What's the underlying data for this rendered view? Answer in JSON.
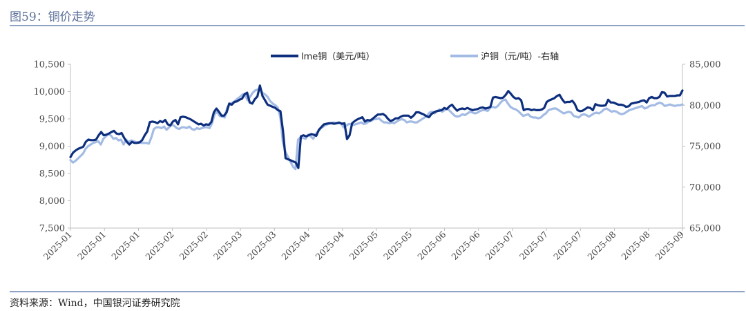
{
  "figure": {
    "title": "图59：铜价走势",
    "source": "资料来源：Wind，中国银河证券研究院"
  },
  "colors": {
    "lme": "#0e2f7e",
    "shfe": "#a3bbe4",
    "axis": "#bfbfbf"
  },
  "chart_data": {
    "type": "line",
    "title": "",
    "xlabel": "",
    "ylabel": "",
    "x_tick_labels": [
      "2025-01",
      "2025-01",
      "2025-01",
      "2025-02",
      "2025-02",
      "2025-03",
      "2025-03",
      "2025-04",
      "2025-04",
      "2025-05",
      "2025-05",
      "2025-06",
      "2025-06",
      "2025-07",
      "2025-07",
      "2025-07",
      "2025-08",
      "2025-08",
      "2025-09"
    ],
    "y_left": {
      "ylim": [
        7500,
        10500
      ],
      "ticks": [
        "7,500",
        "8,000",
        "8,500",
        "9,000",
        "9,500",
        "10,000",
        "10,500"
      ]
    },
    "y_right": {
      "ylim": [
        65000,
        85000
      ],
      "ticks": [
        "65,000",
        "70,000",
        "75,000",
        "80,000",
        "85,000"
      ]
    },
    "legend_position": "top",
    "series": [
      {
        "name": "lme铜（美元/吨）",
        "axis": "left",
        "values": [
          8800,
          8880,
          8920,
          8950,
          8970,
          8990,
          9080,
          9120,
          9110,
          9110,
          9120,
          9200,
          9260,
          9200,
          9210,
          9230,
          9260,
          9280,
          9230,
          9220,
          9240,
          9150,
          9080,
          9030,
          9080,
          9060,
          9060,
          9070,
          9110,
          9200,
          9270,
          9440,
          9450,
          9440,
          9420,
          9460,
          9440,
          9480,
          9400,
          9380,
          9450,
          9480,
          9400,
          9530,
          9540,
          9530,
          9510,
          9490,
          9460,
          9430,
          9400,
          9410,
          9380,
          9400,
          9390,
          9440,
          9620,
          9690,
          9630,
          9560,
          9560,
          9620,
          9780,
          9760,
          9810,
          9820,
          9850,
          9870,
          9950,
          9980,
          9800,
          9780,
          9860,
          9910,
          10110,
          9920,
          9840,
          9760,
          9740,
          9720,
          9700,
          9660,
          9640,
          9280,
          8780,
          8760,
          8740,
          8720,
          8700,
          8600,
          9180,
          9200,
          9180,
          9200,
          9220,
          9210,
          9190,
          9300,
          9350,
          9400,
          9410,
          9420,
          9420,
          9410,
          9420,
          9430,
          9410,
          9420,
          9130,
          9200,
          9420,
          9460,
          9490,
          9510,
          9530,
          9450,
          9480,
          9470,
          9500,
          9540,
          9580,
          9580,
          9590,
          9560,
          9500,
          9460,
          9480,
          9510,
          9510,
          9540,
          9560,
          9560,
          9560,
          9520,
          9560,
          9620,
          9620,
          9600,
          9580,
          9550,
          9530,
          9590,
          9620,
          9640,
          9650,
          9660,
          9700,
          9680,
          9730,
          9760,
          9700,
          9650,
          9680,
          9690,
          9680,
          9700,
          9680,
          9660,
          9670,
          9680,
          9700,
          9710,
          9690,
          9700,
          9720,
          9890,
          9900,
          9890,
          9880,
          9890,
          9940,
          10010,
          9960,
          9900,
          9870,
          9880,
          9840,
          9660,
          9680,
          9680,
          9660,
          9670,
          9660,
          9660,
          9670,
          9700,
          9810,
          9840,
          9860,
          9880,
          9920,
          9940,
          9860,
          9800,
          9810,
          9810,
          9830,
          9770,
          9660,
          9640,
          9650,
          9680,
          9710,
          9700,
          9660,
          9770,
          9750,
          9740,
          9740,
          9750,
          9850,
          9800,
          9800,
          9780,
          9760,
          9760,
          9750,
          9720,
          9730,
          9780,
          9790,
          9800,
          9810,
          9830,
          9840,
          9800,
          9880,
          9900,
          9880,
          9880,
          9900,
          9990,
          9980,
          9910,
          9920,
          9920,
          9920,
          9930,
          9930,
          10020
        ]
      },
      {
        "name": "沪铜（元/吨）-右轴",
        "axis": "right",
        "values": [
          73300,
          73000,
          73200,
          73500,
          73800,
          74100,
          74700,
          75000,
          75200,
          75400,
          75500,
          75600,
          75200,
          75900,
          76200,
          76500,
          76300,
          75900,
          76000,
          75700,
          75800,
          75200,
          75800,
          75500,
          75700,
          75600,
          75500,
          75500,
          75400,
          75400,
          75400,
          75300,
          76100,
          77100,
          77300,
          77300,
          77200,
          77400,
          77000,
          77300,
          77600,
          77500,
          77200,
          77100,
          77300,
          77300,
          77200,
          77400,
          77100,
          77000,
          77200,
          77100,
          77200,
          77300,
          77300,
          77200,
          77800,
          78900,
          79200,
          78700,
          78600,
          78500,
          79700,
          80200,
          80300,
          80500,
          80800,
          81000,
          81300,
          81400,
          80600,
          81000,
          81500,
          81800,
          81900,
          81900,
          81500,
          81300,
          81000,
          80500,
          80200,
          80000,
          79700,
          78500,
          75500,
          74300,
          73700,
          73100,
          72500,
          72200,
          75800,
          76100,
          76000,
          75900,
          76400,
          76200,
          75900,
          76500,
          76800,
          77200,
          77400,
          77600,
          77700,
          77800,
          77900,
          77800,
          77900,
          77800,
          77300,
          77500,
          77700,
          77700,
          77600,
          77700,
          77800,
          77900,
          77700,
          77800,
          78000,
          78100,
          78300,
          78300,
          78400,
          78100,
          77900,
          77900,
          77800,
          77900,
          77800,
          78000,
          78200,
          78300,
          78200,
          77900,
          78000,
          78000,
          77900,
          77900,
          78100,
          78300,
          78500,
          78700,
          79100,
          79200,
          79000,
          79300,
          79500,
          79200,
          79400,
          79600,
          79300,
          79000,
          78700,
          78600,
          78700,
          78900,
          78800,
          79000,
          79200,
          79100,
          79000,
          79100,
          79300,
          79400,
          79400,
          79300,
          79700,
          79800,
          79700,
          79900,
          80300,
          80600,
          80700,
          80200,
          79800,
          79600,
          79500,
          79300,
          79000,
          78700,
          78800,
          78900,
          78600,
          78500,
          78500,
          78400,
          78500,
          78800,
          79000,
          79400,
          79500,
          79600,
          79600,
          79400,
          79200,
          79000,
          79100,
          79200,
          79100,
          78700,
          78600,
          78500,
          78800,
          78900,
          78800,
          78600,
          78800,
          79000,
          79100,
          79000,
          79200,
          79500,
          79600,
          79400,
          79200,
          79300,
          79200,
          79000,
          78900,
          79000,
          79200,
          79400,
          79500,
          79600,
          79700,
          79800,
          79900,
          79600,
          79700,
          79900,
          80000,
          80000,
          80200,
          80300,
          80200,
          79900,
          80000,
          80100,
          80000,
          79900,
          80000,
          80000,
          80100
        ]
      }
    ]
  }
}
